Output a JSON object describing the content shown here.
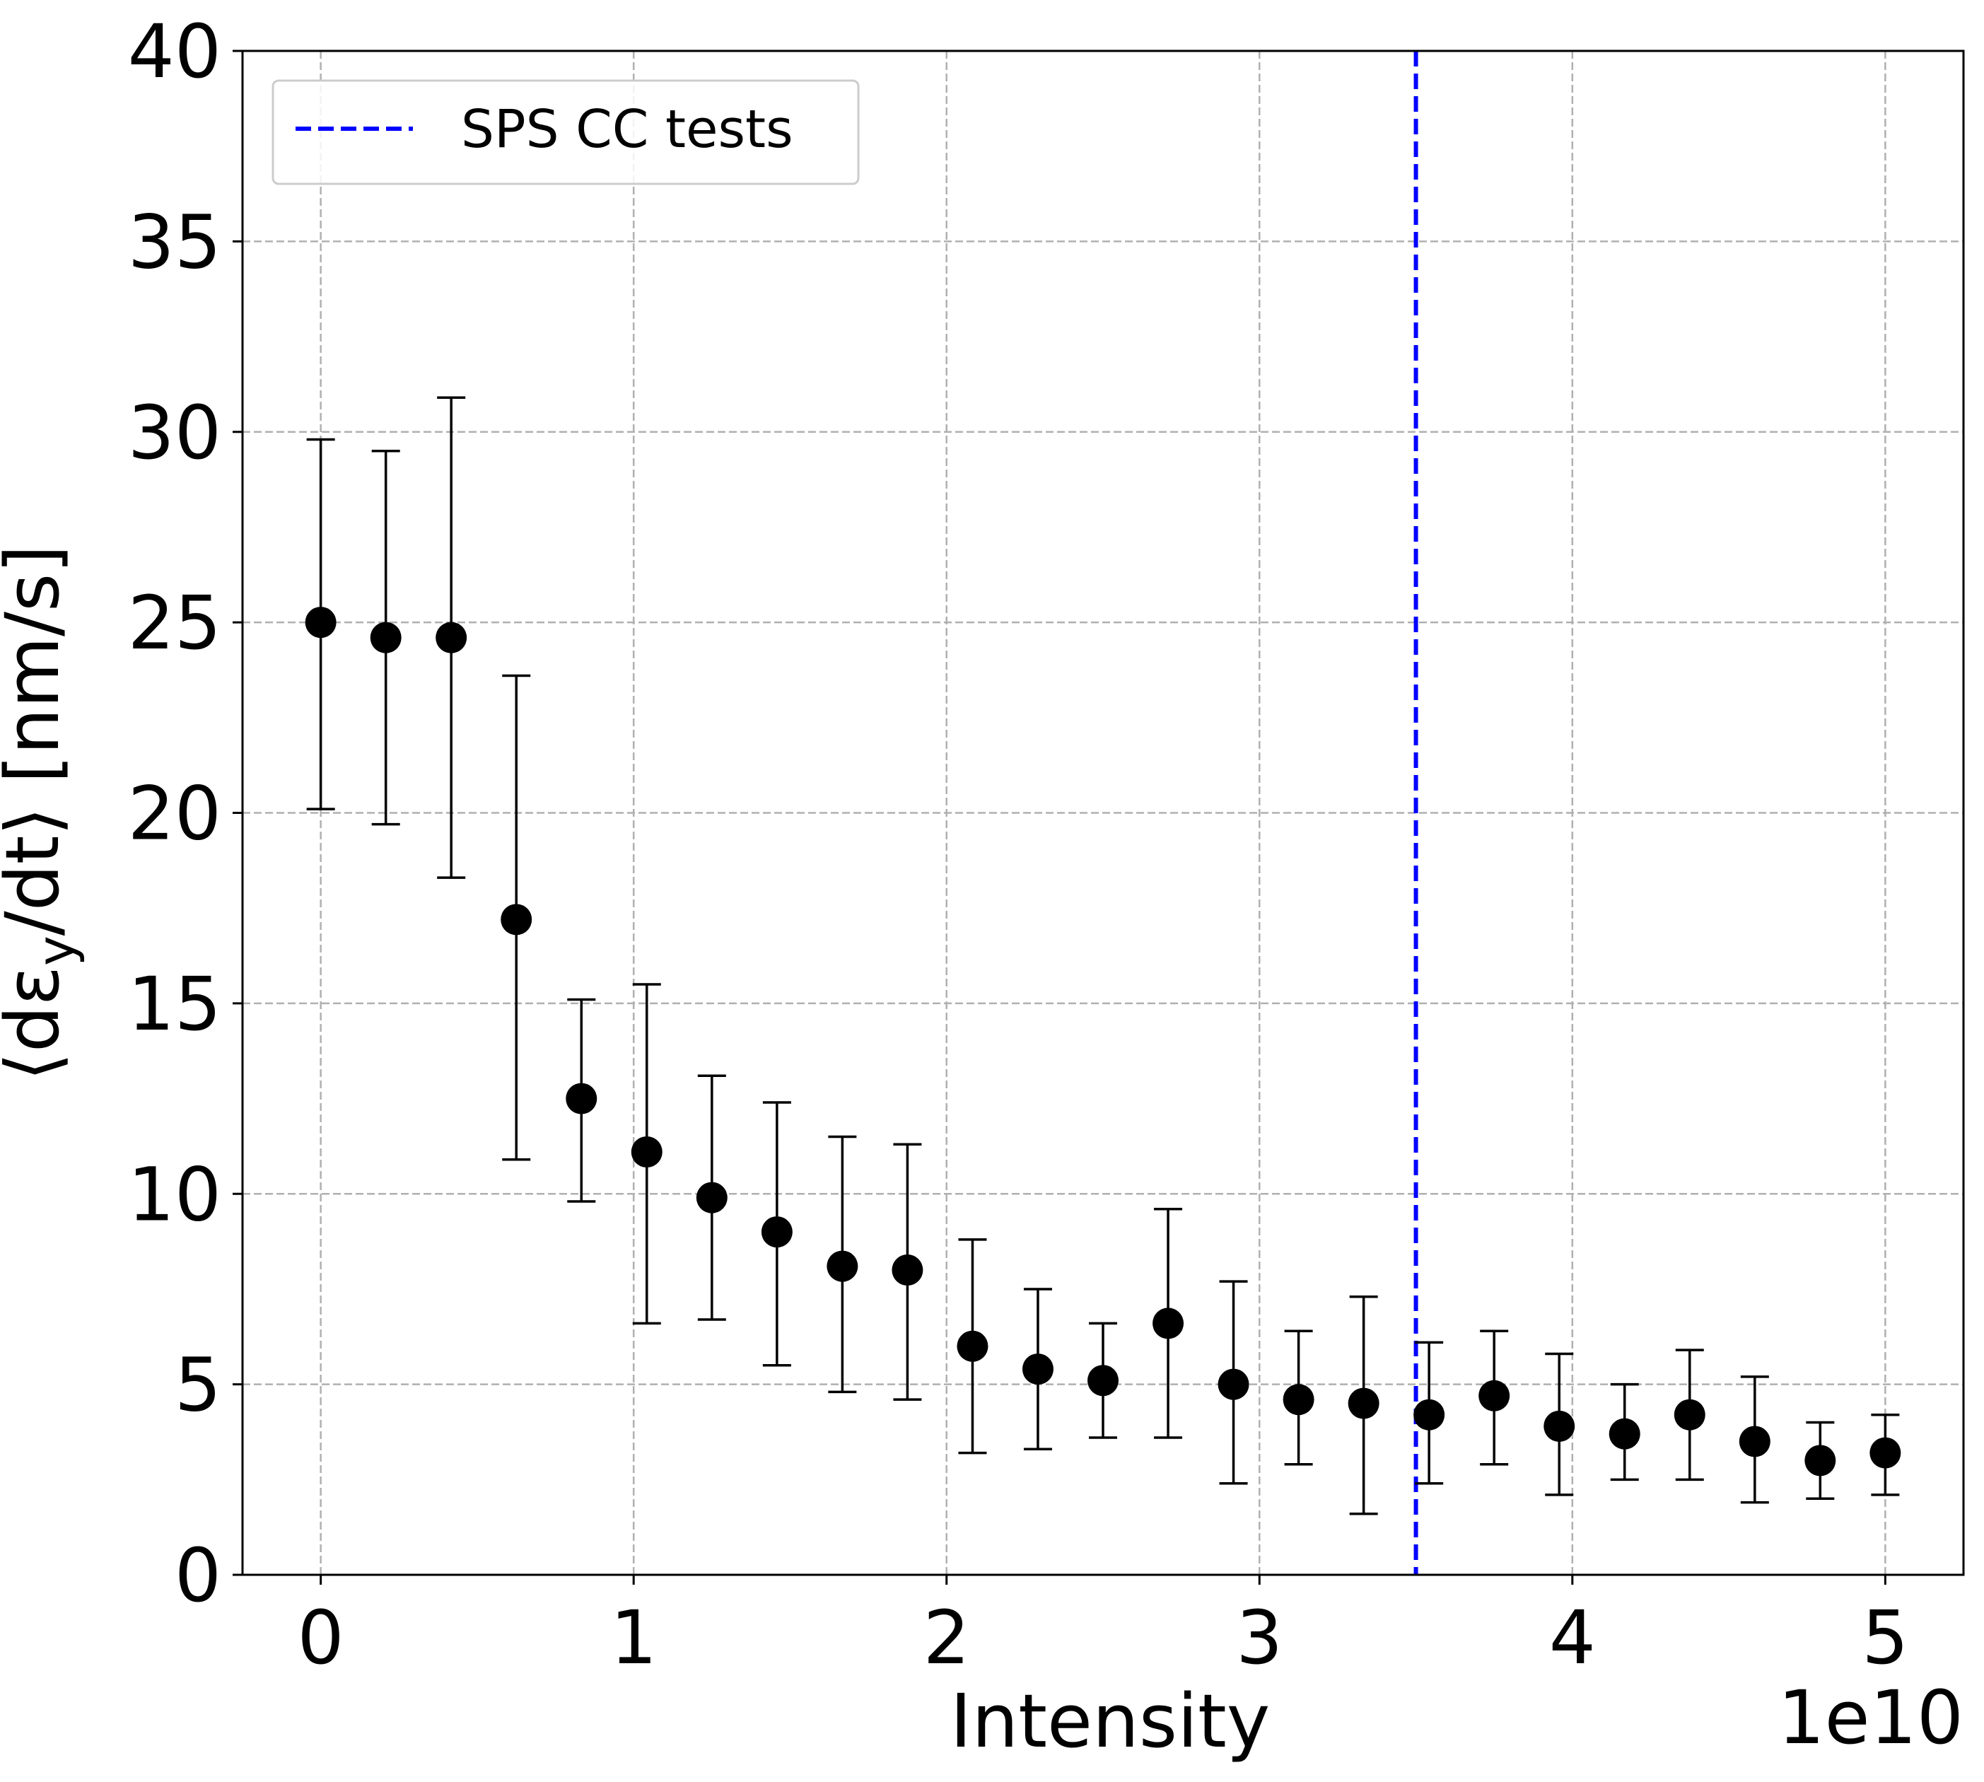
{
  "chart_data": {
    "type": "scatter",
    "title": "",
    "xlabel": "Intensity",
    "ylabel": "⟨dε_y/dt⟩ [nm/s]",
    "x_offset_text": "1e10",
    "xlim": [
      -0.25,
      5.25
    ],
    "ylim": [
      0,
      40
    ],
    "xticks": [
      0,
      1,
      2,
      3,
      4,
      5
    ],
    "yticks": [
      0,
      5,
      10,
      15,
      20,
      25,
      30,
      35,
      40
    ],
    "grid": true,
    "legend": {
      "position": "top-left",
      "entries": [
        {
          "label": "SPS CC tests",
          "style": "dashed",
          "color": "#0000ff"
        }
      ]
    },
    "vline": {
      "x": 3.5,
      "label": "SPS CC tests",
      "color": "#0000ff"
    },
    "series": [
      {
        "marker": "circle",
        "color": "#000000",
        "points": [
          {
            "x": 0.0,
            "y": 25.0,
            "ylo": 20.1,
            "yhi": 29.8
          },
          {
            "x": 0.208,
            "y": 24.6,
            "ylo": 19.7,
            "yhi": 29.5
          },
          {
            "x": 0.417,
            "y": 24.6,
            "ylo": 18.3,
            "yhi": 30.9
          },
          {
            "x": 0.625,
            "y": 17.2,
            "ylo": 10.9,
            "yhi": 23.6
          },
          {
            "x": 0.833,
            "y": 12.5,
            "ylo": 9.8,
            "yhi": 15.1
          },
          {
            "x": 1.042,
            "y": 11.1,
            "ylo": 6.6,
            "yhi": 15.5
          },
          {
            "x": 1.25,
            "y": 9.9,
            "ylo": 6.7,
            "yhi": 13.1
          },
          {
            "x": 1.458,
            "y": 9.0,
            "ylo": 5.5,
            "yhi": 12.4
          },
          {
            "x": 1.667,
            "y": 8.1,
            "ylo": 4.8,
            "yhi": 11.5
          },
          {
            "x": 1.875,
            "y": 8.0,
            "ylo": 4.6,
            "yhi": 11.3
          },
          {
            "x": 2.083,
            "y": 6.0,
            "ylo": 3.2,
            "yhi": 8.8
          },
          {
            "x": 2.292,
            "y": 5.4,
            "ylo": 3.3,
            "yhi": 7.5
          },
          {
            "x": 2.5,
            "y": 5.1,
            "ylo": 3.6,
            "yhi": 6.6
          },
          {
            "x": 2.708,
            "y": 6.6,
            "ylo": 3.6,
            "yhi": 9.6
          },
          {
            "x": 2.917,
            "y": 5.0,
            "ylo": 2.4,
            "yhi": 7.7
          },
          {
            "x": 3.125,
            "y": 4.6,
            "ylo": 2.9,
            "yhi": 6.4
          },
          {
            "x": 3.333,
            "y": 4.5,
            "ylo": 1.6,
            "yhi": 7.3
          },
          {
            "x": 3.542,
            "y": 4.2,
            "ylo": 2.4,
            "yhi": 6.1
          },
          {
            "x": 3.75,
            "y": 4.7,
            "ylo": 2.9,
            "yhi": 6.4
          },
          {
            "x": 3.958,
            "y": 3.9,
            "ylo": 2.1,
            "yhi": 5.8
          },
          {
            "x": 4.167,
            "y": 3.7,
            "ylo": 2.5,
            "yhi": 5.0
          },
          {
            "x": 4.375,
            "y": 4.2,
            "ylo": 2.5,
            "yhi": 5.9
          },
          {
            "x": 4.583,
            "y": 3.5,
            "ylo": 1.9,
            "yhi": 5.2
          },
          {
            "x": 4.792,
            "y": 3.0,
            "ylo": 2.0,
            "yhi": 4.0
          },
          {
            "x": 5.0,
            "y": 3.2,
            "ylo": 2.1,
            "yhi": 4.2
          }
        ]
      }
    ]
  }
}
